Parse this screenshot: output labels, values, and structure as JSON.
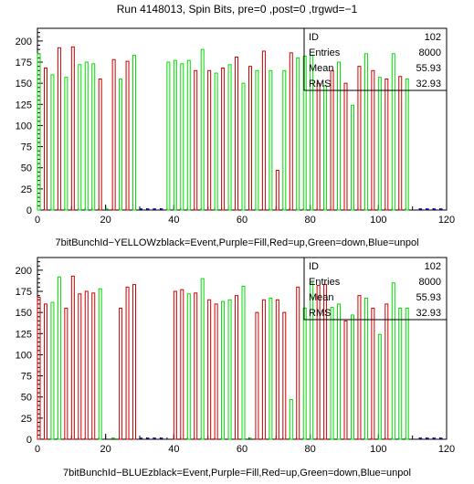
{
  "title": "Run 4148013, Spin Bits, pre=0 ,post=0 ,trgwd=−1",
  "colors": {
    "red": "#cc0000",
    "green": "#00dd00",
    "blue": "#0000cc",
    "axis": "#000000"
  },
  "chart_data": [
    {
      "type": "bar",
      "title": "7bitBunchId−YELLOWzblack=Event,Purple=Fill,Red=up,Green=down,Blue=unpol",
      "xlim": [
        0,
        120
      ],
      "ylim": [
        0,
        215
      ],
      "xticks": [
        0,
        20,
        40,
        60,
        80,
        100,
        120
      ],
      "yticks": [
        0,
        25,
        50,
        75,
        100,
        125,
        150,
        175,
        200
      ],
      "stats": [
        {
          "label": "ID",
          "value": "102"
        },
        {
          "label": "Entries",
          "value": "8000"
        },
        {
          "label": "Mean",
          "value": "55.93"
        },
        {
          "label": "RMS",
          "value": "32.93"
        }
      ],
      "series": [
        {
          "color": "red",
          "x": [
            2,
            6,
            10,
            18,
            22,
            26,
            46,
            50,
            54,
            58,
            62,
            66,
            70,
            74,
            82,
            86,
            90,
            94,
            98,
            102,
            106
          ],
          "values": [
            168,
            192,
            193,
            155,
            178,
            176,
            165,
            165,
            168,
            181,
            170,
            188,
            47,
            186,
            150,
            165,
            150,
            170,
            165,
            155,
            158
          ]
        },
        {
          "color": "green",
          "x": [
            0,
            4,
            8,
            12,
            14,
            16,
            20,
            24,
            28,
            38,
            40,
            42,
            44,
            48,
            52,
            56,
            60,
            64,
            68,
            72,
            76,
            78,
            80,
            84,
            88,
            92,
            96,
            100,
            104,
            108
          ],
          "values": [
            185,
            160,
            157,
            172,
            175,
            173,
            0,
            155,
            183,
            175,
            177,
            173,
            177,
            190,
            162,
            172,
            150,
            165,
            165,
            165,
            180,
            182,
            183,
            147,
            175,
            124,
            185,
            157,
            185,
            155
          ]
        },
        {
          "color": "blue",
          "x": [
            30,
            32,
            34,
            36,
            112,
            114,
            116,
            118
          ],
          "values": [
            0,
            0,
            0,
            0,
            0,
            0,
            0,
            0
          ]
        }
      ]
    },
    {
      "type": "bar",
      "title": "7bitBunchId−BLUEzblack=Event,Purple=Fill,Red=up,Green=down,Blue=unpol",
      "xlim": [
        0,
        120
      ],
      "ylim": [
        0,
        215
      ],
      "xticks": [
        0,
        20,
        40,
        60,
        80,
        100,
        120
      ],
      "yticks": [
        0,
        25,
        50,
        75,
        100,
        125,
        150,
        175,
        200
      ],
      "stats": [
        {
          "label": "ID",
          "value": "102"
        },
        {
          "label": "Entries",
          "value": "8000"
        },
        {
          "label": "Mean",
          "value": "55.93"
        },
        {
          "label": "RMS",
          "value": "32.93"
        }
      ],
      "series": [
        {
          "color": "red",
          "x": [
            0,
            2,
            8,
            10,
            12,
            14,
            16,
            24,
            26,
            28,
            40,
            42,
            46,
            50,
            52,
            58,
            64,
            66,
            70,
            72,
            76,
            82,
            84,
            90,
            94,
            98,
            102
          ],
          "values": [
            168,
            160,
            155,
            193,
            172,
            175,
            173,
            155,
            180,
            183,
            175,
            177,
            173,
            165,
            160,
            170,
            150,
            165,
            165,
            150,
            180,
            182,
            183,
            140,
            170,
            155,
            160
          ]
        },
        {
          "color": "green",
          "x": [
            4,
            6,
            18,
            22,
            44,
            48,
            54,
            56,
            60,
            62,
            68,
            74,
            78,
            80,
            86,
            88,
            92,
            96,
            100,
            104,
            106,
            108
          ],
          "values": [
            162,
            192,
            178,
            0,
            172,
            190,
            163,
            165,
            181,
            0,
            167,
            47,
            155,
            185,
            156,
            160,
            147,
            167,
            124,
            185,
            155,
            155
          ]
        },
        {
          "color": "blue",
          "x": [
            30,
            32,
            34,
            36,
            112,
            114,
            116,
            118
          ],
          "values": [
            0,
            0,
            0,
            0,
            0,
            0,
            0,
            0
          ]
        }
      ]
    }
  ]
}
